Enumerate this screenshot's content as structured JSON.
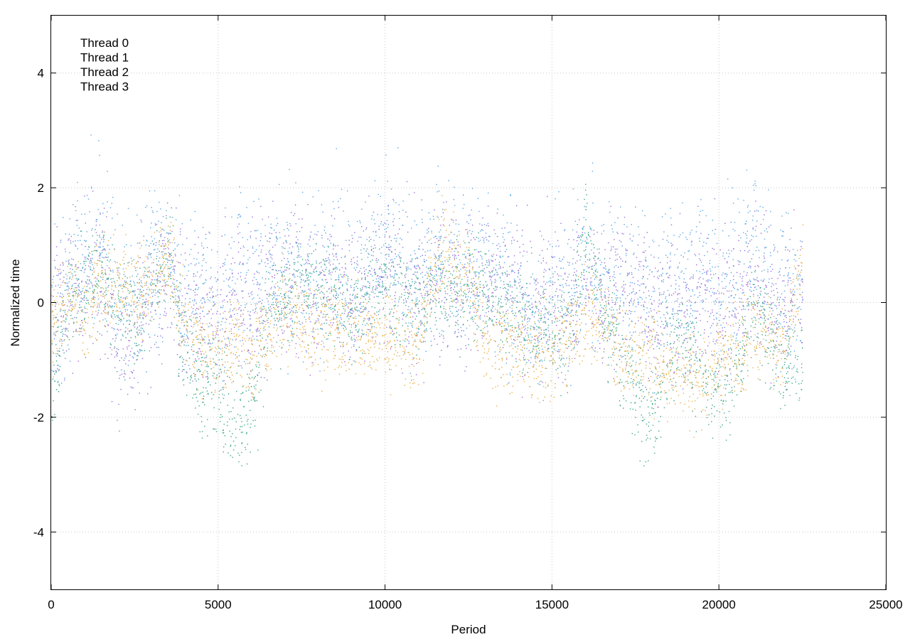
{
  "chart_data": {
    "type": "scatter",
    "title": "",
    "xlabel": "Period",
    "ylabel": "Normalized time",
    "xlim": [
      0,
      25000
    ],
    "ylim": [
      -5,
      5
    ],
    "xticks": [
      {
        "value": 0,
        "label": "0"
      },
      {
        "value": 5000,
        "label": "5000"
      },
      {
        "value": 10000,
        "label": "10000"
      },
      {
        "value": 15000,
        "label": "15000"
      },
      {
        "value": 20000,
        "label": "20000"
      },
      {
        "value": 25000,
        "label": "25000"
      }
    ],
    "yticks": [
      {
        "value": -4,
        "label": "-4"
      },
      {
        "value": -2,
        "label": "-2"
      },
      {
        "value": 0,
        "label": "0"
      },
      {
        "value": 2,
        "label": "2"
      },
      {
        "value": 4,
        "label": "4"
      }
    ],
    "grid": true,
    "legend_position": "top-left",
    "series": [
      {
        "name": "Thread 0",
        "color": "#9b6fdc",
        "spread": 0.65,
        "x": [
          0,
          500,
          1000,
          1500,
          2000,
          2500,
          3000,
          3500,
          4000,
          4500,
          5000,
          5500,
          6000,
          6500,
          7000,
          7500,
          8000,
          8500,
          9000,
          9500,
          10000,
          10500,
          11000,
          11500,
          12000,
          12500,
          13000,
          13500,
          14000,
          14500,
          15000,
          15500,
          16000,
          16500,
          17000,
          17500,
          18000,
          18500,
          19000,
          19500,
          20000,
          20500,
          21000,
          21500,
          22000,
          22500
        ],
        "y": [
          -0.3,
          0.2,
          0.4,
          0.5,
          -0.8,
          -0.5,
          0.2,
          0.6,
          -0.2,
          -0.4,
          -0.3,
          0.2,
          -0.1,
          0.3,
          0.5,
          0.3,
          0.2,
          0.5,
          0.1,
          0.4,
          0.6,
          0.3,
          0.1,
          0.5,
          0.4,
          0.3,
          0.5,
          0.2,
          0.1,
          -0.3,
          0.2,
          0.0,
          0.3,
          0.1,
          0.4,
          0.2,
          -0.2,
          0.0,
          -0.3,
          0.2,
          -0.1,
          0.2,
          0.4,
          0.1,
          -0.2,
          0.3
        ]
      },
      {
        "name": "Thread 1",
        "color": "#5aa9e6",
        "spread": 0.7,
        "x": [
          0,
          500,
          1000,
          1500,
          2000,
          2500,
          3000,
          3500,
          4000,
          4500,
          5000,
          5500,
          6000,
          6500,
          7000,
          7500,
          8000,
          8500,
          9000,
          9500,
          10000,
          10500,
          11000,
          11500,
          12000,
          12500,
          13000,
          13500,
          14000,
          14500,
          15000,
          15500,
          16000,
          16500,
          17000,
          17500,
          18000,
          18500,
          19000,
          19500,
          20000,
          20500,
          21000,
          21500,
          22000,
          22500
        ],
        "y": [
          -0.5,
          0.4,
          0.8,
          1.0,
          0.3,
          0.1,
          0.6,
          0.9,
          0.0,
          0.2,
          -0.2,
          0.3,
          0.4,
          0.5,
          0.7,
          0.5,
          0.4,
          0.7,
          0.3,
          0.6,
          0.9,
          0.5,
          0.3,
          0.8,
          0.7,
          0.5,
          0.6,
          0.4,
          0.2,
          -0.5,
          0.3,
          0.2,
          0.6,
          0.3,
          0.5,
          0.3,
          0.0,
          0.4,
          0.2,
          0.4,
          0.1,
          0.5,
          0.9,
          0.6,
          0.1,
          0.2
        ]
      },
      {
        "name": "Thread 2",
        "color": "#3aa88a",
        "spread": 0.45,
        "x": [
          0,
          500,
          1000,
          1500,
          2000,
          2500,
          3000,
          3500,
          4000,
          4500,
          5000,
          5500,
          6000,
          6500,
          7000,
          7500,
          8000,
          8500,
          9000,
          9500,
          10000,
          10500,
          11000,
          11500,
          12000,
          12500,
          13000,
          13500,
          14000,
          14500,
          15000,
          15500,
          16000,
          16500,
          17000,
          17500,
          18000,
          18500,
          19000,
          19500,
          20000,
          20500,
          21000,
          21500,
          22000,
          22500
        ],
        "y": [
          -1.5,
          0.0,
          0.3,
          0.6,
          -0.2,
          -0.3,
          0.2,
          1.0,
          -0.9,
          -1.3,
          -1.6,
          -2.0,
          -1.9,
          -0.2,
          0.1,
          0.2,
          0.3,
          0.2,
          -0.3,
          0.2,
          0.4,
          0.0,
          0.0,
          0.3,
          0.2,
          0.3,
          0.1,
          0.0,
          -0.2,
          -0.6,
          -0.4,
          -0.5,
          1.2,
          -0.1,
          -0.9,
          -1.7,
          -2.0,
          -0.8,
          -0.6,
          -1.3,
          -1.6,
          -1.2,
          -0.1,
          -0.6,
          -1.0,
          -1.0
        ]
      },
      {
        "name": "Thread 3",
        "color": "#e8b04a",
        "spread": 0.4,
        "x": [
          0,
          500,
          1000,
          1500,
          2000,
          2500,
          3000,
          3500,
          4000,
          4500,
          5000,
          5500,
          6000,
          6500,
          7000,
          7500,
          8000,
          8500,
          9000,
          9500,
          10000,
          10500,
          11000,
          11500,
          12000,
          12500,
          13000,
          13500,
          14000,
          14500,
          15000,
          15500,
          16000,
          16500,
          17000,
          17500,
          18000,
          18500,
          19000,
          19500,
          20000,
          20500,
          21000,
          21500,
          22000,
          22500
        ],
        "y": [
          -0.4,
          0.1,
          -0.2,
          0.5,
          0.3,
          0.2,
          0.4,
          0.8,
          -0.5,
          -0.6,
          -0.8,
          -0.7,
          -0.9,
          -0.4,
          -0.2,
          -0.3,
          -0.5,
          -0.4,
          -0.6,
          -0.5,
          -0.6,
          -0.7,
          -0.8,
          0.9,
          0.6,
          0.5,
          -0.9,
          -0.6,
          -0.8,
          -0.9,
          -1.0,
          -0.5,
          -0.3,
          -0.2,
          -0.9,
          -0.8,
          -1.0,
          -1.1,
          -1.2,
          -1.3,
          -1.0,
          -0.8,
          -0.5,
          -0.6,
          -0.8,
          0.8
        ]
      }
    ]
  }
}
